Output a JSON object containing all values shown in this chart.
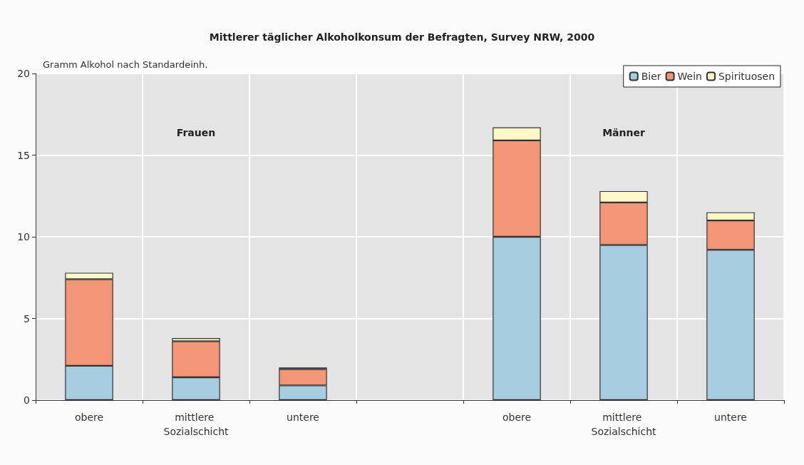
{
  "chart_data": {
    "type": "bar",
    "title": "Mittlerer täglicher Alkoholkonsum der Befragten, Survey NRW, 2000",
    "ylabel": "Gramm Alkohol nach Standardeinh.",
    "annotations": [
      "Frauen",
      "Männer"
    ],
    "categories": [
      "obere",
      "mittlere Sozialschicht",
      "untere",
      null,
      "obere",
      "mittlere Sozialschicht",
      "untere"
    ],
    "stacked": true,
    "series": [
      {
        "name": "Bier",
        "color": "#a6cde0",
        "values": [
          2.1,
          1.4,
          0.9,
          null,
          10.0,
          9.5,
          9.2
        ]
      },
      {
        "name": "Wein",
        "color": "#f39677",
        "values": [
          5.3,
          2.2,
          1.0,
          null,
          5.9,
          2.6,
          1.8
        ]
      },
      {
        "name": "Spirituosen",
        "color": "#fff8c8",
        "values": [
          0.4,
          0.2,
          0.1,
          null,
          0.8,
          0.7,
          0.5
        ]
      }
    ],
    "ylim": [
      0,
      20
    ],
    "yticks": [
      0,
      5,
      10,
      15,
      20
    ],
    "grid": true,
    "legend": "top right"
  }
}
